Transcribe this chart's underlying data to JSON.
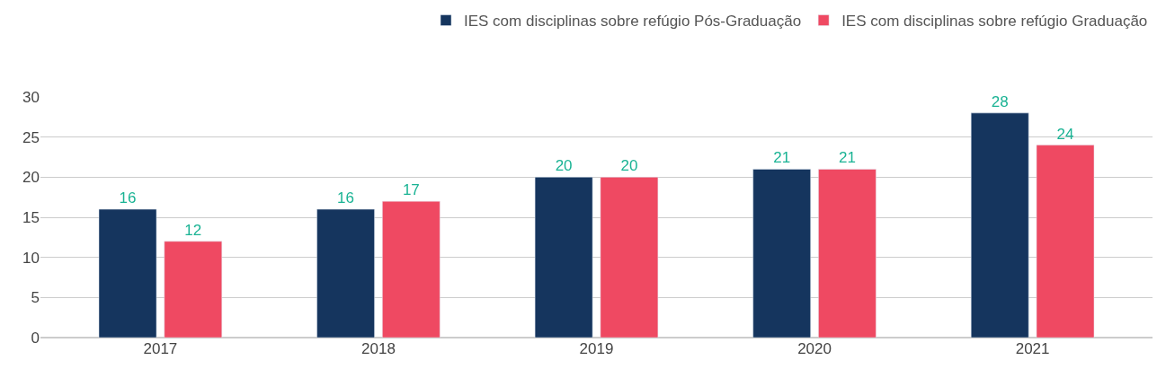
{
  "chart_data": {
    "type": "bar",
    "categories": [
      "2017",
      "2018",
      "2019",
      "2020",
      "2021"
    ],
    "series": [
      {
        "name": "IES com disciplinas sobre refúgio Pós-Graduação",
        "color": "#15355e",
        "values": [
          16,
          16,
          20,
          21,
          28
        ]
      },
      {
        "name": "IES com disciplinas sobre refúgio Graduação",
        "color": "#ef4962",
        "values": [
          12,
          17,
          20,
          21,
          24
        ]
      }
    ],
    "ylim": [
      0,
      30
    ],
    "yticks": [
      0,
      5,
      10,
      15,
      20,
      25,
      30
    ],
    "grid": "y",
    "legend": "top right",
    "data_labels": true
  }
}
